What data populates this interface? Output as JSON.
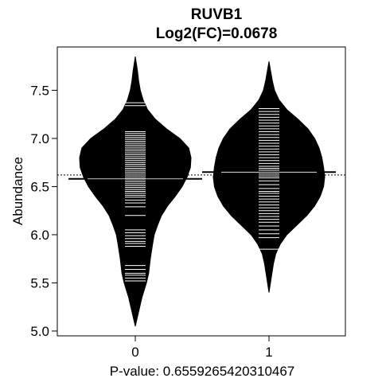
{
  "chart_data": {
    "type": "beanplot",
    "title": "RUVB1",
    "subtitle": "Log2(FC)=0.0678",
    "xlabel": "P-value: 0.6559265420310467",
    "ylabel": "Abundance",
    "categories": [
      "0",
      "1"
    ],
    "ylim": [
      4.95,
      7.95
    ],
    "yticks": [
      5.0,
      5.5,
      6.0,
      6.5,
      7.0,
      7.5
    ],
    "ytick_labels": [
      "5.0",
      "5.5",
      "6.0",
      "6.5",
      "7.0",
      "7.5"
    ],
    "overall_mean": 6.62,
    "groups": [
      {
        "category": "0",
        "mean": 6.58,
        "range": [
          5.05,
          7.85
        ],
        "density": [
          [
            5.05,
            0.0
          ],
          [
            5.2,
            0.06
          ],
          [
            5.35,
            0.12
          ],
          [
            5.5,
            0.2
          ],
          [
            5.6,
            0.24
          ],
          [
            5.75,
            0.27
          ],
          [
            5.9,
            0.31
          ],
          [
            6.0,
            0.34
          ],
          [
            6.1,
            0.4
          ],
          [
            6.2,
            0.47
          ],
          [
            6.3,
            0.58
          ],
          [
            6.4,
            0.72
          ],
          [
            6.5,
            0.84
          ],
          [
            6.6,
            0.93
          ],
          [
            6.7,
            0.99
          ],
          [
            6.8,
            1.0
          ],
          [
            6.9,
            0.96
          ],
          [
            7.0,
            0.8
          ],
          [
            7.1,
            0.56
          ],
          [
            7.2,
            0.36
          ],
          [
            7.3,
            0.22
          ],
          [
            7.4,
            0.14
          ],
          [
            7.5,
            0.09
          ],
          [
            7.6,
            0.06
          ],
          [
            7.7,
            0.04
          ],
          [
            7.85,
            0.0
          ]
        ],
        "points": [
          5.52,
          5.55,
          5.58,
          5.6,
          5.64,
          5.68,
          5.88,
          5.91,
          5.93,
          5.96,
          5.99,
          6.02,
          6.05,
          6.2,
          6.29,
          6.33,
          6.36,
          6.39,
          6.41,
          6.43,
          6.45,
          6.47,
          6.49,
          6.51,
          6.53,
          6.55,
          6.57,
          6.59,
          6.61,
          6.63,
          6.65,
          6.67,
          6.69,
          6.71,
          6.73,
          6.75,
          6.77,
          6.79,
          6.81,
          6.83,
          6.85,
          6.87,
          6.89,
          6.91,
          6.93,
          6.95,
          6.97,
          6.99,
          7.01,
          7.03,
          7.05,
          7.07,
          7.34,
          7.37
        ]
      },
      {
        "category": "1",
        "mean": 6.65,
        "range": [
          5.4,
          7.8
        ],
        "density": [
          [
            5.4,
            0.0
          ],
          [
            5.55,
            0.04
          ],
          [
            5.7,
            0.08
          ],
          [
            5.8,
            0.12
          ],
          [
            5.9,
            0.2
          ],
          [
            6.0,
            0.32
          ],
          [
            6.1,
            0.5
          ],
          [
            6.2,
            0.68
          ],
          [
            6.3,
            0.82
          ],
          [
            6.4,
            0.92
          ],
          [
            6.5,
            0.98
          ],
          [
            6.6,
            1.0
          ],
          [
            6.7,
            0.98
          ],
          [
            6.8,
            0.95
          ],
          [
            6.9,
            0.9
          ],
          [
            7.0,
            0.82
          ],
          [
            7.1,
            0.7
          ],
          [
            7.2,
            0.52
          ],
          [
            7.3,
            0.32
          ],
          [
            7.4,
            0.18
          ],
          [
            7.5,
            0.1
          ],
          [
            7.6,
            0.06
          ],
          [
            7.7,
            0.03
          ],
          [
            7.8,
            0.0
          ]
        ],
        "points": [
          5.85,
          5.97,
          6.01,
          6.05,
          6.09,
          6.13,
          6.16,
          6.19,
          6.22,
          6.25,
          6.28,
          6.31,
          6.34,
          6.37,
          6.4,
          6.43,
          6.45,
          6.48,
          6.52,
          6.56,
          6.59,
          6.61,
          6.63,
          6.67,
          6.69,
          6.71,
          6.74,
          6.77,
          6.8,
          6.83,
          6.86,
          6.89,
          6.92,
          6.95,
          6.98,
          7.01,
          7.04,
          7.07,
          7.1,
          7.13,
          7.16,
          7.19,
          7.22,
          7.25,
          7.28,
          7.31
        ]
      }
    ]
  }
}
